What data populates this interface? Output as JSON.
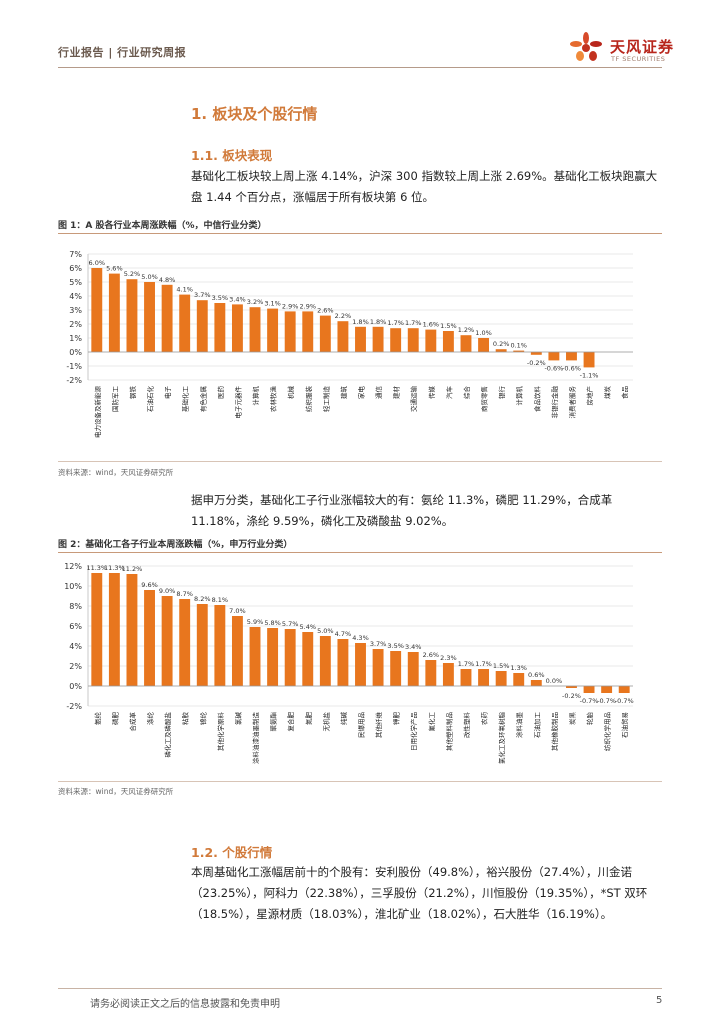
{
  "header": {
    "left_text": "行业报告 | 行业研究周报",
    "logo_cn": "天风证券",
    "logo_en": "TF SECURITIES"
  },
  "section1": {
    "title": "1. 板块及个股行情",
    "sub1_title": "1.1. 板块表现",
    "sub1_para": "基础化工板块较上周上涨 4.14%，沪深 300 指数较上周上涨 2.69%。基础化工板块跑赢大盘 1.44 个百分点，涨幅居于所有板块第 6 位。",
    "fig1_title": "图 1：A 股各行业本周涨跌幅（%，中信行业分类）",
    "fig1_source": "资料来源：wind，天风证券研究所",
    "mid_para": "据申万分类，基础化工子行业涨幅较大的有：氨纶 11.3%，磷肥 11.29%，合成革 11.18%，涤纶 9.59%，磷化工及磷酸盐 9.02%。",
    "fig2_title": "图 2：基础化工各子行业本周涨跌幅（%，申万行业分类）",
    "fig2_source": "资料来源：wind，天风证券研究所",
    "sub2_title": "1.2. 个股行情",
    "sub2_para": "本周基础化工涨幅居前十的个股有：安利股份（49.8%），裕兴股份（27.4%），川金诺（23.25%），阿科力（22.38%），三孚股份（21.2%），川恒股份（19.35%），*ST 双环（18.5%），星源材质（18.03%），淮北矿业（18.02%），石大胜华（16.19%）。"
  },
  "footer": {
    "disclaimer": "请务必阅读正文之后的信息披露和免责申明",
    "page": "5"
  },
  "colors": {
    "bar": "#e8761e",
    "accent": "#d17a3a",
    "grid": "#e2e2e2"
  },
  "chart_data": [
    {
      "type": "bar",
      "title": "",
      "ylim": [
        -2,
        7
      ],
      "yticks": [
        "-2%",
        "-1%",
        "0%",
        "1%",
        "2%",
        "3%",
        "4%",
        "5%",
        "6%",
        "7%"
      ],
      "categories": [
        "电力设备及新能源",
        "国防军工",
        "钢铁",
        "石油石化",
        "电子",
        "基础化工",
        "有色金属",
        "医药",
        "电子元器件",
        "计算机",
        "农林牧渔",
        "机械",
        "纺织服装",
        "轻工制造",
        "建筑",
        "家电",
        "通信",
        "建材",
        "交通运输",
        "传媒",
        "汽车",
        "综合",
        "商贸零售",
        "银行",
        "计算机",
        "食品饮料",
        "非银行金融",
        "消费者服务",
        "房地产",
        "煤炭",
        "食品"
      ],
      "values": [
        6.0,
        5.6,
        5.2,
        5.0,
        4.8,
        4.1,
        3.7,
        3.5,
        3.4,
        3.2,
        3.1,
        2.9,
        2.9,
        2.6,
        2.2,
        1.8,
        1.8,
        1.7,
        1.7,
        1.6,
        1.5,
        1.2,
        1.0,
        0.2,
        0.1,
        -0.2,
        -0.6,
        -0.6,
        -1.1,
        0,
        0
      ],
      "labels": [
        "6.0%",
        "5.6%",
        "5.2%",
        "5.0%",
        "4.8%",
        "4.1%",
        "3.7%",
        "3.5%",
        "3.4%",
        "3.2%",
        "3.1%",
        "2.9%",
        "2.9%",
        "2.6%",
        "2.2%",
        "1.8%",
        "1.8%",
        "1.7%",
        "1.7%",
        "1.6%",
        "1.5%",
        "1.2%",
        "1.0%",
        "0.2%",
        "0.1%",
        "-0.2%",
        "-0.6%",
        "-0.6%",
        "-1.1%",
        "",
        ""
      ]
    },
    {
      "type": "bar",
      "title": "",
      "ylim": [
        -2,
        12
      ],
      "yticks": [
        "-2%",
        "0%",
        "2%",
        "4%",
        "6%",
        "8%",
        "10%",
        "12%"
      ],
      "categories": [
        "氨纶",
        "磷肥",
        "合成革",
        "涤纶",
        "磷化工及磷酸盐",
        "粘胶",
        "锦纶",
        "其他化学原料",
        "氯碱",
        "涂料油漆油墨制造",
        "聚氨酯",
        "复合肥",
        "氮肥",
        "无机盐",
        "纯碱",
        "民爆用品",
        "其他纤维",
        "钾肥",
        "日用化学产品",
        "氟化工",
        "其他塑料制品",
        "改性塑料",
        "农药",
        "氯化工及环氧树脂",
        "涂料油墨",
        "石油加工",
        "其他橡胶制品",
        "炭黑",
        "轮胎",
        "纺织化学用品",
        "石油贸易"
      ],
      "values": [
        11.3,
        11.3,
        11.2,
        9.6,
        9.0,
        8.7,
        8.2,
        8.1,
        7.0,
        5.9,
        5.8,
        5.7,
        5.4,
        5.0,
        4.7,
        4.3,
        3.7,
        3.5,
        3.4,
        2.6,
        2.3,
        1.7,
        1.7,
        1.5,
        1.3,
        0.6,
        0.0,
        -0.2,
        -0.7,
        -0.7,
        -0.7
      ],
      "labels": [
        "11.3%",
        "11.3%",
        "11.2%",
        "9.6%",
        "9.0%",
        "8.7%",
        "8.2%",
        "8.1%",
        "7.0%",
        "5.9%",
        "5.8%",
        "5.7%",
        "5.4%",
        "5.0%",
        "4.7%",
        "4.3%",
        "3.7%",
        "3.5%",
        "3.4%",
        "2.6%",
        "2.3%",
        "1.7%",
        "1.7%",
        "1.5%",
        "1.3%",
        "0.6%",
        "0.0%",
        "-0.2%",
        "-0.7%",
        "-0.7%",
        "-0.7%"
      ]
    }
  ]
}
